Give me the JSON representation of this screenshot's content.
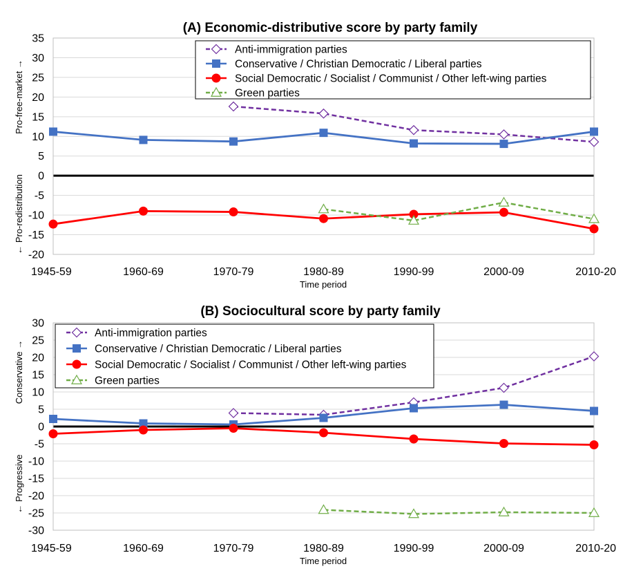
{
  "colors": {
    "anti": "#7030a0",
    "cons": "#4472c4",
    "soc": "#ff0000",
    "green": "#70ad47",
    "zero": "#000000",
    "grid": "#d9d9d9"
  },
  "chart_data": [
    {
      "type": "line",
      "title": "(A)  Economic-distributive score by party family",
      "xlabel": "Time period",
      "ylabel_top": "Pro-free-market →",
      "ylabel_bottom": "← Pro-redistribution",
      "categories": [
        "1945-59",
        "1960-69",
        "1970-79",
        "1980-89",
        "1990-99",
        "2000-09",
        "2010-20"
      ],
      "ylim": [
        -20,
        35
      ],
      "ystep": 5,
      "yticks": [
        "35",
        "30",
        "25",
        "20",
        "15",
        "10",
        "5",
        "0",
        "-5",
        "-10",
        "-15",
        "-20"
      ],
      "legend_position": "top-right",
      "grid": "horizontal",
      "series": [
        {
          "key": "anti",
          "name": "Anti-immigration parties",
          "marker": "diamond-open",
          "dash": "dashed",
          "values": [
            null,
            null,
            17.6,
            15.8,
            11.6,
            10.5,
            8.6
          ]
        },
        {
          "key": "cons",
          "name": "Conservative / Christian Democratic / Liberal parties",
          "marker": "square",
          "dash": "solid",
          "values": [
            11.2,
            9.1,
            8.7,
            10.9,
            8.2,
            8.1,
            11.2
          ]
        },
        {
          "key": "soc",
          "name": "Social Democratic / Socialist / Communist / Other left-wing parties",
          "marker": "circle",
          "dash": "solid",
          "values": [
            -12.3,
            -9.0,
            -9.2,
            -10.9,
            -9.8,
            -9.3,
            -13.5
          ]
        },
        {
          "key": "green",
          "name": "Green parties",
          "marker": "triangle-open",
          "dash": "dashed",
          "values": [
            null,
            null,
            null,
            -8.5,
            -11.4,
            -6.8,
            -11.0
          ]
        }
      ]
    },
    {
      "type": "line",
      "title": "(B)  Sociocultural score by party family",
      "xlabel": "Time period",
      "ylabel_top": "Conservative →",
      "ylabel_bottom": "← Progressive",
      "categories": [
        "1945-59",
        "1960-69",
        "1970-79",
        "1980-89",
        "1990-99",
        "2000-09",
        "2010-20"
      ],
      "ylim": [
        -30,
        30
      ],
      "ystep": 5,
      "yticks": [
        "30",
        "25",
        "20",
        "15",
        "10",
        "5",
        "0",
        "-5",
        "-10",
        "-15",
        "-20",
        "-25",
        "-30"
      ],
      "legend_position": "top-left",
      "grid": "horizontal",
      "series": [
        {
          "key": "anti",
          "name": "Anti-immigration parties",
          "marker": "diamond-open",
          "dash": "dashed",
          "values": [
            null,
            null,
            3.9,
            3.4,
            7.0,
            11.2,
            20.3
          ]
        },
        {
          "key": "cons",
          "name": "Conservative / Christian Democratic / Liberal parties",
          "marker": "square",
          "dash": "solid",
          "values": [
            2.2,
            0.9,
            0.6,
            2.5,
            5.3,
            6.3,
            4.5
          ]
        },
        {
          "key": "soc",
          "name": "Social Democratic / Socialist / Communist / Other left-wing parties",
          "marker": "circle",
          "dash": "solid",
          "values": [
            -2.1,
            -1.0,
            -0.5,
            -1.8,
            -3.6,
            -4.9,
            -5.3
          ]
        },
        {
          "key": "green",
          "name": "Green parties",
          "marker": "triangle-open",
          "dash": "dashed",
          "values": [
            null,
            null,
            null,
            -24.1,
            -25.3,
            -24.8,
            -25.0
          ]
        }
      ]
    }
  ]
}
